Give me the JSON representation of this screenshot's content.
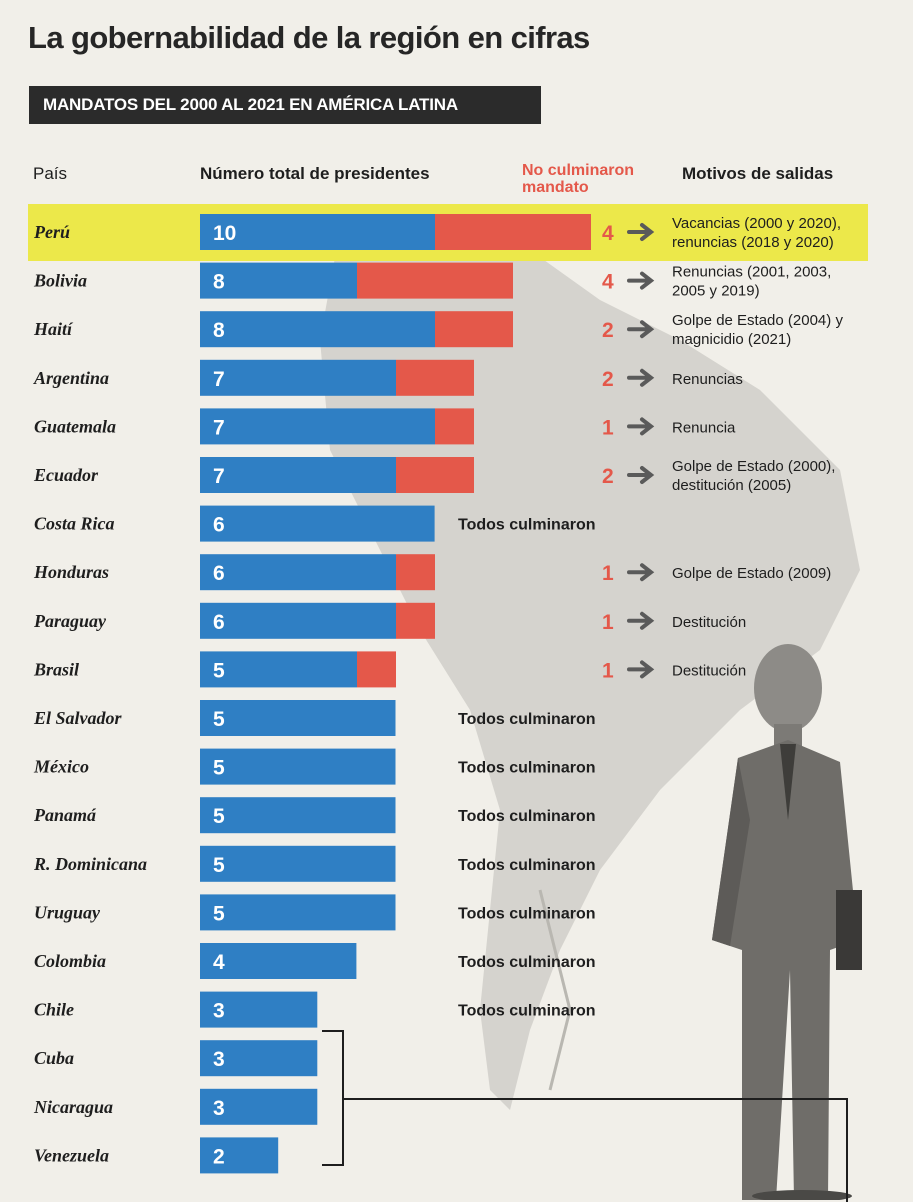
{
  "title": "La gobernabilidad de la región en cifras",
  "subtitle": "MANDATOS DEL 2000 AL 2021 EN AMÉRICA LATINA",
  "headers": {
    "country": "País",
    "total": "Número total de presidentes",
    "not_completed": "No culminaron mandato",
    "motives": "Motivos de salidas"
  },
  "colors": {
    "total_bar": "#2f7fc4",
    "not_completed_bar": "#e4584a",
    "highlight": "#ece84a",
    "not_completed_text": "#e4584a"
  },
  "chart_data": {
    "type": "bar",
    "orientation": "horizontal",
    "stacked": true,
    "highlighted_category": "Perú",
    "categories": [
      "Perú",
      "Bolivia",
      "Haití",
      "Argentina",
      "Guatemala",
      "Ecuador",
      "Costa Rica",
      "Honduras",
      "Paraguay",
      "Brasil",
      "El Salvador",
      "México",
      "Panamá",
      "R. Dominicana",
      "Uruguay",
      "Colombia",
      "Chile",
      "Cuba",
      "Nicaragua",
      "Venezuela"
    ],
    "series": [
      {
        "name": "Número total de presidentes",
        "values": [
          10,
          8,
          8,
          7,
          7,
          7,
          6,
          6,
          6,
          5,
          5,
          5,
          5,
          5,
          5,
          4,
          3,
          3,
          3,
          2
        ]
      },
      {
        "name": "No culminaron mandato",
        "values": [
          4,
          4,
          2,
          2,
          1,
          2,
          0,
          1,
          1,
          1,
          0,
          0,
          0,
          0,
          0,
          0,
          0,
          null,
          null,
          null
        ]
      }
    ],
    "motives": [
      "Vacancias (2000 y 2020), renuncias (2018 y 2020)",
      "Renuncias (2001, 2003, 2005 y 2019)",
      "Golpe de Estado (2004) y magnicidio (2021)",
      "Renuncias",
      "Renuncia",
      "Golpe de Estado (2000), destitución (2005)",
      "Todos culminaron",
      "Golpe de Estado (2009)",
      "Destitución",
      "Destitución",
      "Todos culminaron",
      "Todos culminaron",
      "Todos culminaron",
      "Todos culminaron",
      "Todos culminaron",
      "Todos culminaron",
      "Todos culminaron",
      "",
      "",
      ""
    ]
  }
}
